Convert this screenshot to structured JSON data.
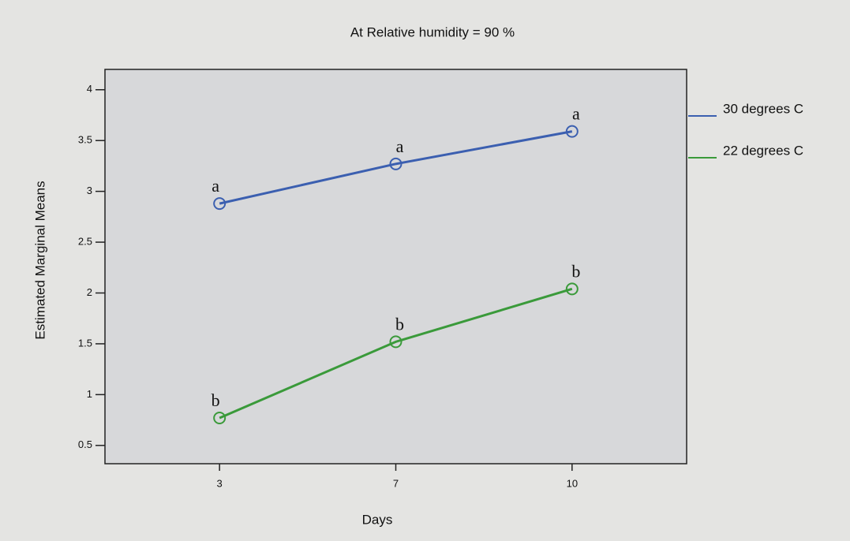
{
  "chart_data": {
    "type": "line",
    "title": "At Relative humidity = 90 %",
    "xlabel": "Days",
    "ylabel": "Estimated Marginal Means",
    "categories": [
      "3",
      "7",
      "10"
    ],
    "series": [
      {
        "name": "30 degrees C",
        "color": "#3b5fb0",
        "values": [
          2.88,
          3.27,
          3.59
        ],
        "labels": [
          "a",
          "a",
          "a"
        ]
      },
      {
        "name": "22 degrees C",
        "color": "#3a9a3a",
        "values": [
          0.77,
          1.52,
          2.04
        ],
        "labels": [
          "b",
          "b",
          "b"
        ]
      }
    ],
    "ylim": [
      0.32,
      4.2
    ],
    "yticks": [
      0.5,
      1,
      1.5,
      2,
      2.5,
      3,
      3.5,
      4
    ],
    "grid": false,
    "legend": "right"
  }
}
